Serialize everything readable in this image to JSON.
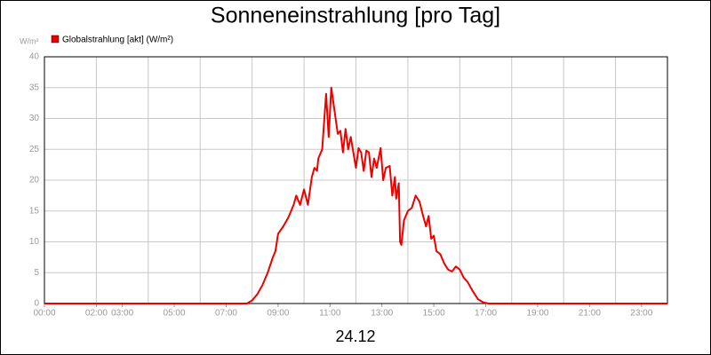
{
  "chart_data": {
    "type": "line",
    "title": "Sonneneinstrahlung [pro Tag]",
    "y_unit": "W/m²",
    "x_label": "24.12",
    "x": [
      0,
      7.8,
      8.0,
      8.2,
      8.4,
      8.6,
      8.8,
      8.9,
      9.0,
      9.2,
      9.4,
      9.6,
      9.7,
      9.85,
      10.0,
      10.15,
      10.3,
      10.4,
      10.5,
      10.55,
      10.7,
      10.85,
      10.95,
      11.05,
      11.15,
      11.3,
      11.4,
      11.5,
      11.6,
      11.7,
      11.8,
      11.9,
      12.0,
      12.1,
      12.2,
      12.3,
      12.4,
      12.5,
      12.6,
      12.7,
      12.8,
      12.95,
      13.05,
      13.15,
      13.3,
      13.4,
      13.5,
      13.55,
      13.65,
      13.7,
      13.75,
      13.85,
      14.0,
      14.15,
      14.3,
      14.45,
      14.6,
      14.7,
      14.8,
      14.9,
      15.0,
      15.1,
      15.25,
      15.4,
      15.55,
      15.7,
      15.85,
      16.0,
      16.15,
      16.3,
      16.5,
      16.7,
      16.9,
      17.1,
      24
    ],
    "series": [
      {
        "name": "Globalstrahlung [akt] (W/m²)",
        "color": "#ee0000",
        "values": [
          0,
          0,
          0.5,
          1.5,
          3,
          5,
          7.5,
          8.5,
          11.3,
          12.5,
          14,
          16,
          17.5,
          16,
          18.5,
          16,
          20.5,
          22,
          21.5,
          23.5,
          25,
          34,
          27,
          35,
          32,
          27.5,
          28,
          24.5,
          28.3,
          25,
          27,
          24.5,
          22,
          25.2,
          24.5,
          21.5,
          24.8,
          24.5,
          20.5,
          23.5,
          22,
          25.2,
          20,
          22,
          22.3,
          17.5,
          20.5,
          17,
          19.5,
          10,
          9.5,
          13.5,
          15,
          15.5,
          17.5,
          16.5,
          14,
          12.5,
          14.2,
          10.5,
          11,
          8.5,
          8,
          6.5,
          5.5,
          5.2,
          6,
          5.5,
          4.2,
          3.5,
          2,
          0.7,
          0.2,
          0,
          0
        ]
      }
    ],
    "xlim": [
      0,
      24
    ],
    "xticks": [
      {
        "value": 0,
        "label": "00:00"
      },
      {
        "value": 2,
        "label": "02:00"
      },
      {
        "value": 3,
        "label": "03:00"
      },
      {
        "value": 5,
        "label": "05:00"
      },
      {
        "value": 7,
        "label": "07:00"
      },
      {
        "value": 9,
        "label": "09:00"
      },
      {
        "value": 11,
        "label": "11:00"
      },
      {
        "value": 13,
        "label": "13:00"
      },
      {
        "value": 15,
        "label": "15:00"
      },
      {
        "value": 17,
        "label": "17:00"
      },
      {
        "value": 19,
        "label": "19:00"
      },
      {
        "value": 21,
        "label": "21:00"
      },
      {
        "value": 23,
        "label": "23:00"
      }
    ],
    "xgrid": [
      2,
      4,
      6,
      8,
      10,
      12,
      14,
      16,
      18,
      20,
      22
    ],
    "ylim": [
      0,
      40
    ],
    "yticks": [
      0,
      5,
      10,
      15,
      20,
      25,
      30,
      35,
      40
    ],
    "grid": true
  }
}
